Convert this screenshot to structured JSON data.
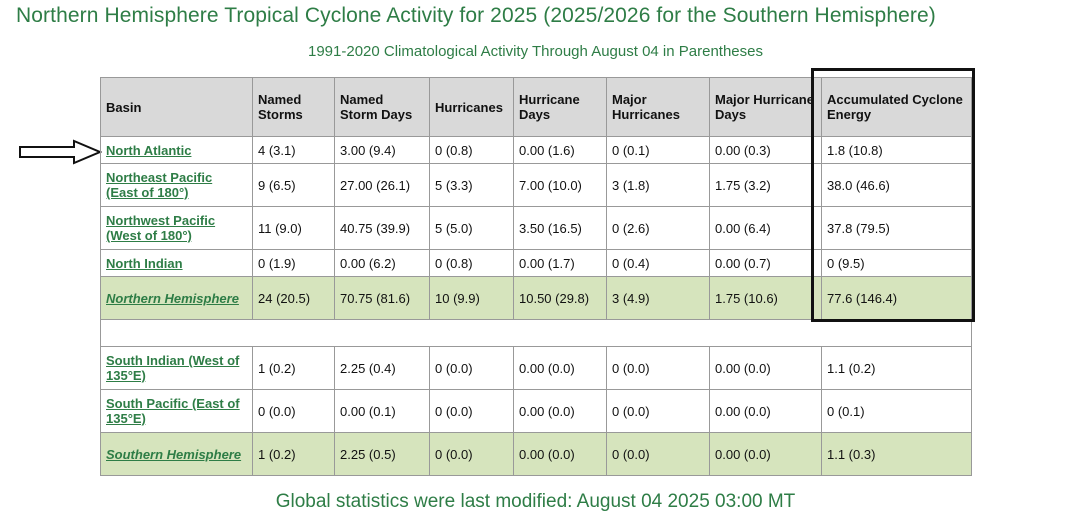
{
  "title": "Northern Hemisphere Tropical Cyclone Activity for 2025 (2025/2026 for the Southern Hemisphere)",
  "subtitle": "1991-2020 Climatological Activity Through August 04 in Parentheses",
  "footer": "Global statistics were last modified: August 04 2025 03:00 MT",
  "headers": [
    "Basin",
    "Named Storms",
    "Named Storm Days",
    "Hurricanes",
    "Hurricane Days",
    "Major Hurricanes",
    "Major Hurricane Days",
    "Accumulated Cyclone Energy"
  ],
  "rows": [
    {
      "basin": "North Atlantic",
      "cells": [
        "4 (3.1)",
        "3.00 (9.4)",
        "0 (0.8)",
        "0.00 (1.6)",
        "0 (0.1)",
        "0.00 (0.3)",
        "1.8 (10.8)"
      ]
    },
    {
      "basin": "Northeast Pacific (East of 180°)",
      "cells": [
        "9 (6.5)",
        "27.00 (26.1)",
        "5 (3.3)",
        "7.00 (10.0)",
        "3 (1.8)",
        "1.75 (3.2)",
        "38.0 (46.6)"
      ]
    },
    {
      "basin": "Northwest Pacific (West of 180°)",
      "cells": [
        "11 (9.0)",
        "40.75 (39.9)",
        "5 (5.0)",
        "3.50 (16.5)",
        "0 (2.6)",
        "0.00 (6.4)",
        "37.8 (79.5)"
      ]
    },
    {
      "basin": "North Indian",
      "cells": [
        "0 (1.9)",
        "0.00 (6.2)",
        "0 (0.8)",
        "0.00 (1.7)",
        "0 (0.4)",
        "0.00 (0.7)",
        "0 (9.5)"
      ]
    },
    {
      "basin": "Northern Hemisphere",
      "cells": [
        "24 (20.5)",
        "70.75 (81.6)",
        "10 (9.9)",
        "10.50 (29.8)",
        "3 (4.9)",
        "1.75 (10.6)",
        "77.6 (146.4)"
      ]
    },
    {
      "basin": "South Indian (West of 135°E)",
      "cells": [
        "1 (0.2)",
        "2.25 (0.4)",
        "0 (0.0)",
        "0.00 (0.0)",
        "0 (0.0)",
        "0.00 (0.0)",
        "1.1 (0.2)"
      ]
    },
    {
      "basin": "South Pacific (East of 135°E)",
      "cells": [
        "0 (0.0)",
        "0.00 (0.1)",
        "0 (0.0)",
        "0.00 (0.0)",
        "0 (0.0)",
        "0.00 (0.0)",
        "0 (0.1)"
      ]
    },
    {
      "basin": "Southern Hemisphere",
      "cells": [
        "1 (0.2)",
        "2.25 (0.5)",
        "0 (0.0)",
        "0.00 (0.0)",
        "0 (0.0)",
        "0.00 (0.0)",
        "1.1 (0.3)"
      ]
    }
  ],
  "colors": {
    "accent_green": "#2e7d46",
    "total_row_bg": "#d6e4bd",
    "header_bg": "#d9d9d9"
  },
  "annotations": {
    "arrow_icon": "right-arrow-icon",
    "highlight_column": "Accumulated Cyclone Energy"
  }
}
